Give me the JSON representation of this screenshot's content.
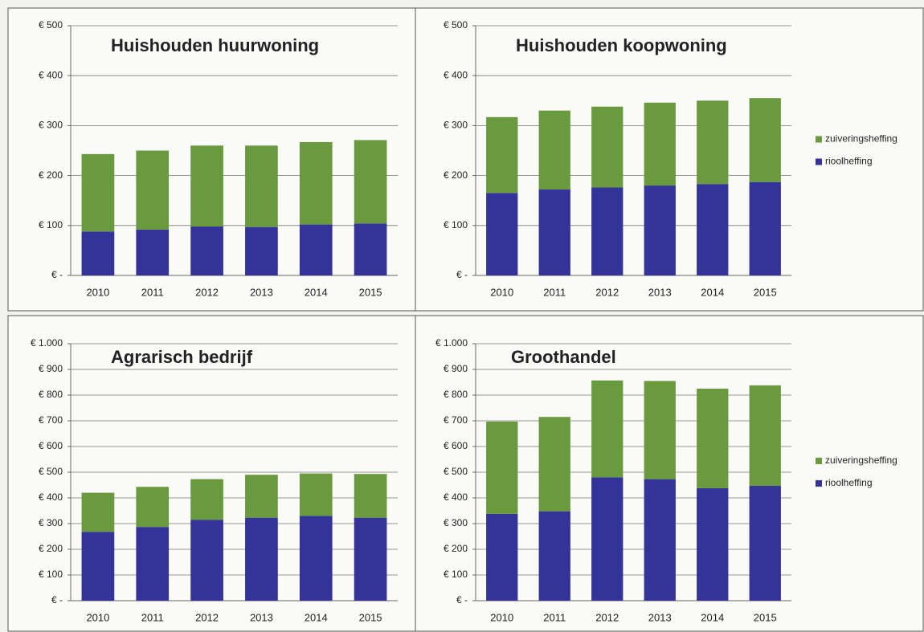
{
  "chart_data": [
    {
      "type": "stacked_bar",
      "title": "Huishouden huurwoning",
      "categories": [
        "2010",
        "2011",
        "2012",
        "2013",
        "2014",
        "2015"
      ],
      "series": [
        {
          "color": "#33339a",
          "values": [
            88,
            92,
            98,
            97,
            102,
            104
          ]
        },
        {
          "color": "#6a9a3e",
          "values": [
            155,
            158,
            162,
            163,
            165,
            167
          ]
        }
      ],
      "ylim": [
        0,
        500
      ],
      "yticks": [
        {
          "value": 0,
          "label": "€ -"
        },
        {
          "value": 100,
          "label": "€ 100"
        },
        {
          "value": 200,
          "label": "€ 200"
        },
        {
          "value": 300,
          "label": "€ 300"
        },
        {
          "value": 400,
          "label": "€ 400"
        },
        {
          "value": 500,
          "label": "€ 500"
        }
      ],
      "grid": true
    },
    {
      "type": "stacked_bar",
      "title": "Huishouden koopwoning",
      "categories": [
        "2010",
        "2011",
        "2012",
        "2013",
        "2014",
        "2015"
      ],
      "series": [
        {
          "name": "rioolheffing",
          "color": "#33339a",
          "values": [
            165,
            172,
            176,
            180,
            183,
            187
          ]
        },
        {
          "name": "zuiveringsheffing",
          "color": "#6a9a3e",
          "values": [
            152,
            158,
            162,
            166,
            167,
            168
          ]
        }
      ],
      "ylim": [
        0,
        500
      ],
      "yticks": [
        {
          "value": 0,
          "label": "€ -"
        },
        {
          "value": 100,
          "label": "€ 100"
        },
        {
          "value": 200,
          "label": "€ 200"
        },
        {
          "value": 300,
          "label": "€ 300"
        },
        {
          "value": 400,
          "label": "€ 400"
        },
        {
          "value": 500,
          "label": "€ 500"
        }
      ],
      "grid": true,
      "legend": "right"
    },
    {
      "type": "stacked_bar",
      "title": "Agrarisch bedrijf",
      "categories": [
        "2010",
        "2011",
        "2012",
        "2013",
        "2014",
        "2015"
      ],
      "series": [
        {
          "color": "#33339a",
          "values": [
            268,
            287,
            315,
            323,
            330,
            323
          ]
        },
        {
          "color": "#6a9a3e",
          "values": [
            152,
            156,
            158,
            167,
            165,
            170
          ]
        }
      ],
      "ylim": [
        0,
        1000
      ],
      "yticks": [
        {
          "value": 0,
          "label": "€ -"
        },
        {
          "value": 100,
          "label": "€ 100"
        },
        {
          "value": 200,
          "label": "€ 200"
        },
        {
          "value": 300,
          "label": "€ 300"
        },
        {
          "value": 400,
          "label": "€ 400"
        },
        {
          "value": 500,
          "label": "€ 500"
        },
        {
          "value": 600,
          "label": "€ 600"
        },
        {
          "value": 700,
          "label": "€ 700"
        },
        {
          "value": 800,
          "label": "€ 800"
        },
        {
          "value": 900,
          "label": "€ 900"
        },
        {
          "value": 1000,
          "label": "€ 1.000"
        }
      ],
      "grid": true
    },
    {
      "type": "stacked_bar",
      "title": "Groothandel",
      "categories": [
        "2010",
        "2011",
        "2012",
        "2013",
        "2014",
        "2015"
      ],
      "series": [
        {
          "name": "rioolheffing",
          "color": "#33339a",
          "values": [
            338,
            348,
            480,
            473,
            438,
            447
          ]
        },
        {
          "name": "zuiveringsheffing",
          "color": "#6a9a3e",
          "values": [
            359,
            367,
            377,
            382,
            387,
            391
          ]
        }
      ],
      "ylim": [
        0,
        1000
      ],
      "yticks": [
        {
          "value": 0,
          "label": "€ -"
        },
        {
          "value": 100,
          "label": "€ 100"
        },
        {
          "value": 200,
          "label": "€ 200"
        },
        {
          "value": 300,
          "label": "€ 300"
        },
        {
          "value": 400,
          "label": "€ 400"
        },
        {
          "value": 500,
          "label": "€ 500"
        },
        {
          "value": 600,
          "label": "€ 600"
        },
        {
          "value": 700,
          "label": "€ 700"
        },
        {
          "value": 800,
          "label": "€ 800"
        },
        {
          "value": 900,
          "label": "€ 900"
        },
        {
          "value": 1000,
          "label": "€ 1.000"
        }
      ],
      "grid": true,
      "legend": "right"
    }
  ]
}
